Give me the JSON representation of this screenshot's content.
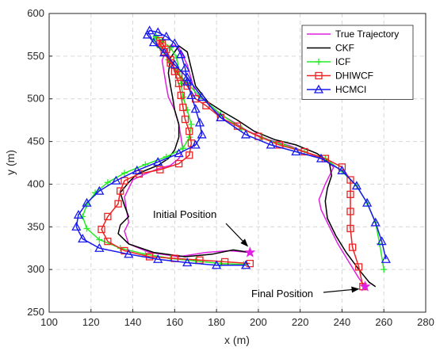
{
  "chart_data": {
    "type": "line",
    "xlabel": "x (m)",
    "ylabel": "y (m)",
    "xlim": [
      100,
      280
    ],
    "ylim": [
      250,
      600
    ],
    "xticks": [
      100,
      120,
      140,
      160,
      180,
      200,
      220,
      240,
      260,
      280
    ],
    "yticks": [
      250,
      300,
      350,
      400,
      450,
      500,
      550,
      600
    ],
    "grid": true,
    "legend_position": "top-right",
    "series": [
      {
        "name": "True Trajectory",
        "color": "#e020e0",
        "marker": "none",
        "x": [
          196,
          186,
          175,
          162,
          148,
          138,
          136,
          138,
          137,
          136,
          138,
          140,
          146,
          152,
          158,
          162,
          164,
          163,
          162,
          160,
          157,
          156,
          155,
          154,
          156,
          159,
          162,
          166,
          170,
          175,
          181,
          188,
          195,
          205,
          215,
          225,
          232,
          236,
          232,
          229,
          230,
          234,
          238,
          243,
          248,
          251
        ],
        "y": [
          320,
          322,
          320,
          315,
          320,
          330,
          345,
          355,
          370,
          385,
          395,
          405,
          412,
          418,
          422,
          430,
          440,
          455,
          470,
          487,
          502,
          515,
          530,
          545,
          558,
          563,
          560,
          540,
          505,
          497,
          483,
          473,
          462,
          452,
          445,
          435,
          428,
          420,
          400,
          382,
          370,
          350,
          330,
          310,
          290,
          280
        ]
      },
      {
        "name": "CKF",
        "color": "#000000",
        "marker": "none",
        "x": [
          196,
          188,
          178,
          165,
          150,
          138,
          133,
          134,
          138,
          136,
          134,
          138,
          142,
          148,
          152,
          157,
          160,
          162,
          162,
          160,
          159,
          158,
          157,
          158,
          162,
          166,
          170,
          176,
          183,
          190,
          198,
          208,
          218,
          228,
          234,
          235,
          233,
          232,
          233,
          237,
          242,
          248,
          253,
          256
        ],
        "y": [
          320,
          323,
          318,
          315,
          320,
          330,
          342,
          352,
          362,
          375,
          390,
          402,
          412,
          418,
          422,
          430,
          440,
          455,
          470,
          487,
          502,
          515,
          530,
          548,
          562,
          555,
          515,
          496,
          485,
          475,
          462,
          452,
          446,
          436,
          425,
          410,
          395,
          380,
          360,
          340,
          320,
          300,
          285,
          280
        ]
      },
      {
        "name": "ICF",
        "color": "#22ee22",
        "marker": "plus",
        "x": [
          193,
          182,
          170,
          158,
          146,
          134,
          124,
          118,
          116,
          118,
          122,
          128,
          136,
          146,
          156,
          164,
          167,
          168,
          166,
          164,
          163,
          162,
          161,
          158,
          154,
          151,
          150,
          153,
          157,
          161,
          166,
          172,
          182,
          192,
          202,
          212,
          222,
          232,
          240,
          247,
          252,
          256,
          258,
          260
        ],
        "y": [
          306,
          307,
          310,
          313,
          318,
          325,
          335,
          348,
          362,
          376,
          390,
          402,
          413,
          423,
          432,
          442,
          455,
          470,
          487,
          502,
          518,
          534,
          548,
          560,
          568,
          573,
          570,
          560,
          546,
          532,
          518,
          503,
          482,
          465,
          454,
          446,
          438,
          430,
          415,
          398,
          378,
          355,
          330,
          300
        ]
      },
      {
        "name": "DHIWCF",
        "color": "#ee2222",
        "marker": "square",
        "x": [
          196,
          184,
          172,
          160,
          148,
          136,
          128,
          125,
          128,
          133,
          134,
          136,
          143,
          153,
          162,
          167,
          168,
          167,
          165,
          164,
          163,
          162,
          160,
          158,
          156,
          154,
          153,
          153,
          155,
          158,
          162,
          166,
          170,
          175,
          182,
          190,
          200,
          210,
          222,
          232,
          240,
          244,
          244,
          244,
          244,
          245,
          248,
          250
        ],
        "y": [
          307,
          309,
          311,
          313,
          315,
          322,
          333,
          347,
          362,
          377,
          392,
          404,
          412,
          417,
          424,
          434,
          448,
          462,
          476,
          490,
          504,
          518,
          532,
          546,
          558,
          565,
          568,
          565,
          555,
          542,
          528,
          515,
          500,
          492,
          478,
          468,
          456,
          446,
          438,
          430,
          420,
          405,
          388,
          368,
          348,
          326,
          303,
          280
        ]
      },
      {
        "name": "HCMCI",
        "color": "#1a1aee",
        "marker": "triangle",
        "x": [
          194,
          180,
          166,
          152,
          138,
          124,
          116,
          113,
          114,
          118,
          124,
          132,
          142,
          152,
          162,
          170,
          173,
          172,
          170,
          168,
          166,
          165,
          163,
          160,
          156,
          152,
          148,
          147,
          150,
          155,
          160,
          166,
          173,
          182,
          194,
          206,
          218,
          230,
          240,
          247,
          252,
          256,
          259,
          261
        ],
        "y": [
          305,
          305,
          308,
          312,
          318,
          325,
          336,
          350,
          364,
          378,
          392,
          404,
          416,
          426,
          436,
          446,
          458,
          472,
          488,
          504,
          520,
          536,
          552,
          565,
          573,
          578,
          580,
          575,
          566,
          554,
          540,
          525,
          502,
          478,
          458,
          446,
          438,
          430,
          416,
          398,
          378,
          355,
          333,
          312
        ]
      }
    ],
    "annotations": [
      {
        "text": "Initial Position",
        "x": 196,
        "y": 320
      },
      {
        "text": "Final Position",
        "x": 251,
        "y": 280
      }
    ]
  }
}
